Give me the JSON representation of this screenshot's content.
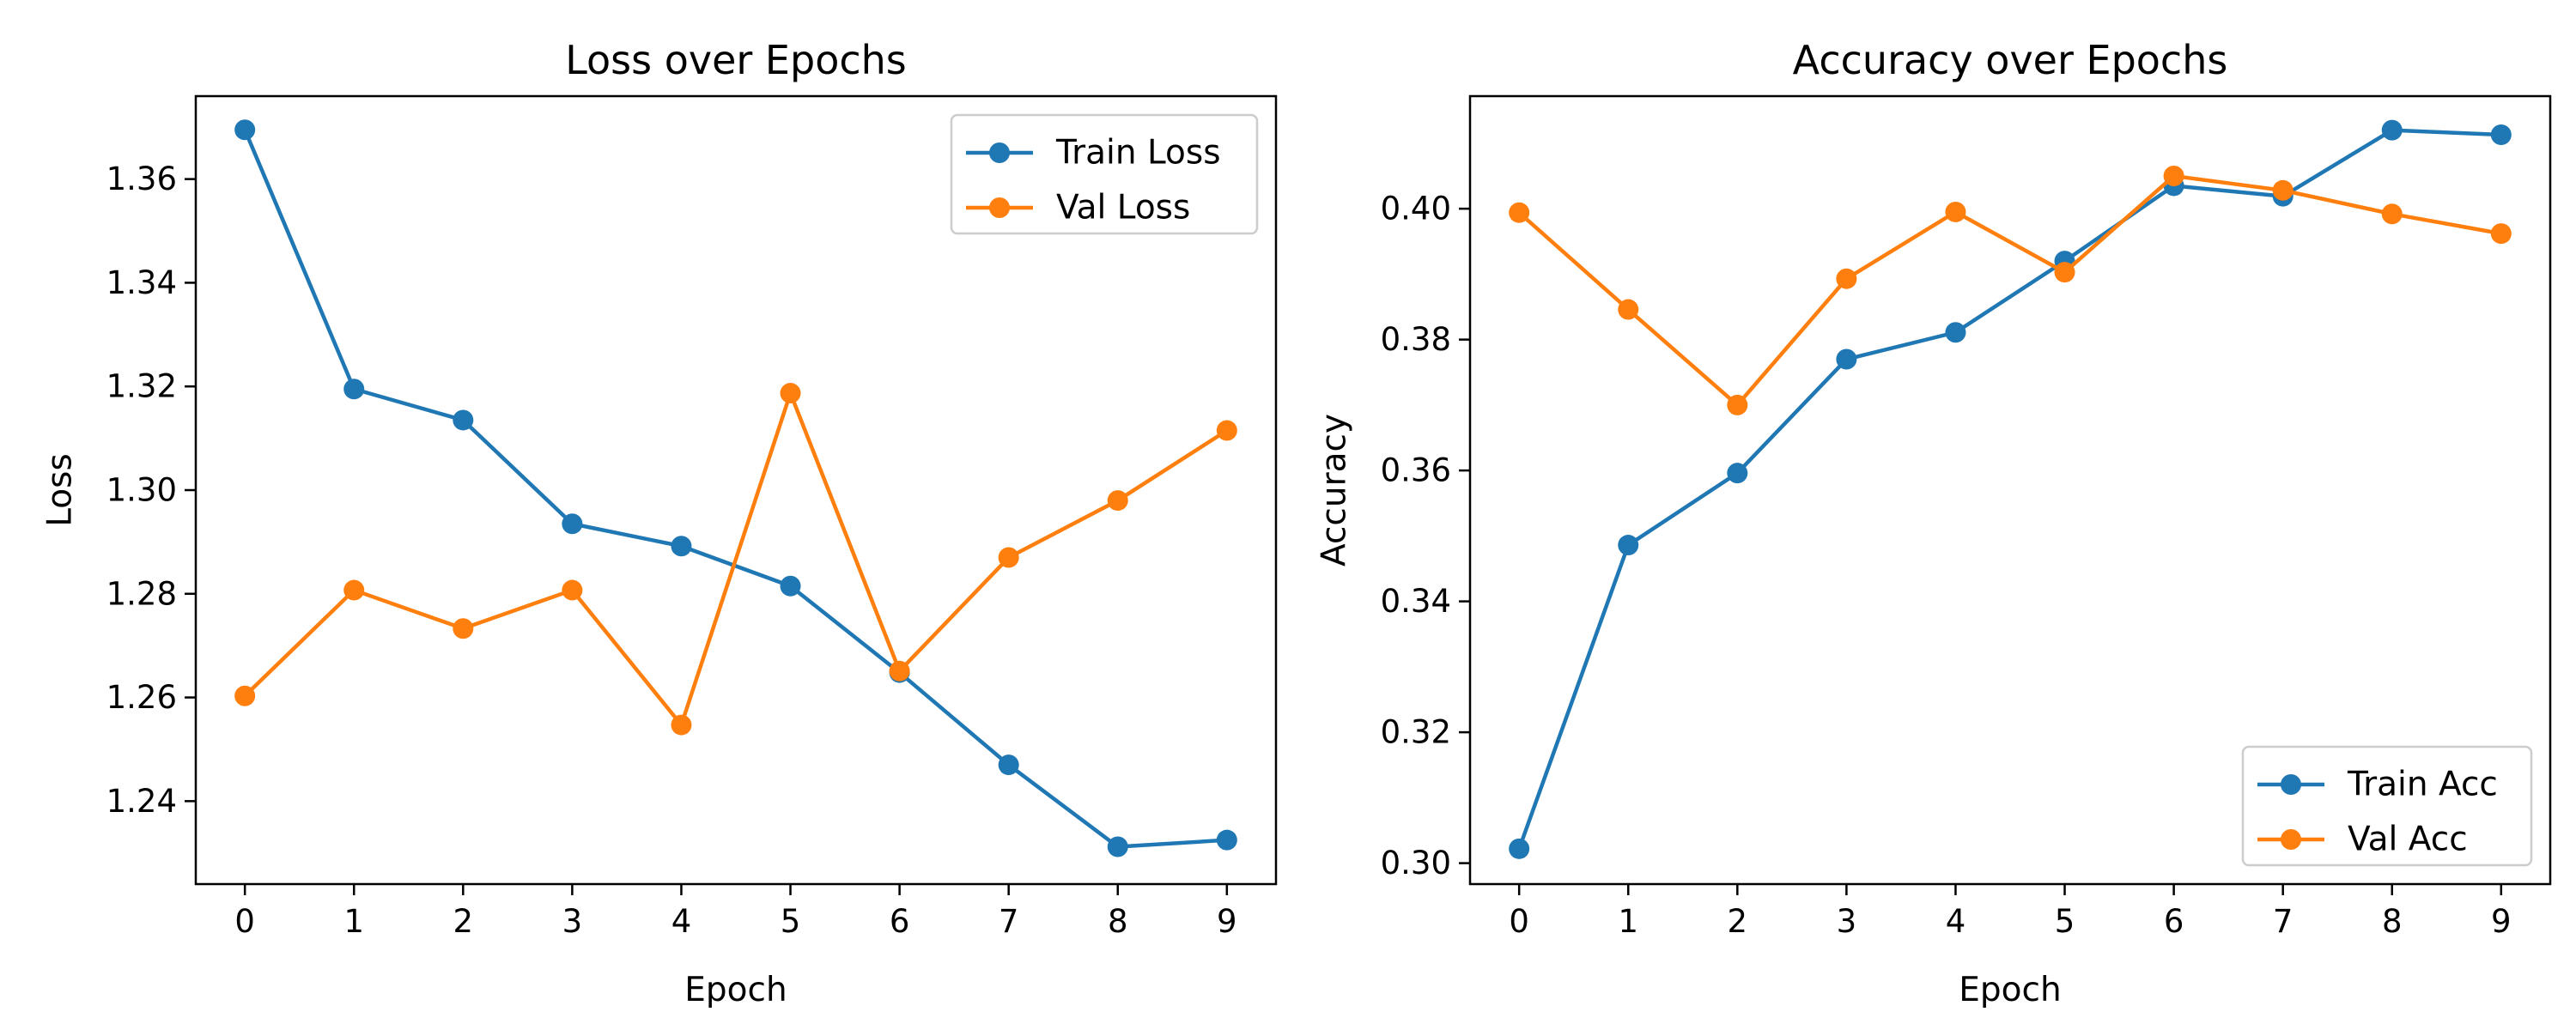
{
  "chart_data": [
    {
      "type": "line",
      "title": "Loss over Epochs",
      "xlabel": "Epoch",
      "ylabel": "Loss",
      "x": [
        0,
        1,
        2,
        3,
        4,
        5,
        6,
        7,
        8,
        9
      ],
      "xticks": [
        0,
        1,
        2,
        3,
        4,
        5,
        6,
        7,
        8,
        9
      ],
      "yticks": [
        1.24,
        1.26,
        1.28,
        1.3,
        1.32,
        1.34,
        1.36
      ],
      "ytick_labels": [
        "1.24",
        "1.26",
        "1.28",
        "1.30",
        "1.32",
        "1.34",
        "1.36"
      ],
      "xlim": [
        -0.45,
        9.45
      ],
      "ylim": [
        1.224,
        1.376
      ],
      "grid": false,
      "legend_position": "upper right",
      "series": [
        {
          "name": "Train Loss",
          "color": "#1f77b4",
          "marker": "circle",
          "values": [
            1.3695,
            1.3195,
            1.3135,
            1.2935,
            1.2892,
            1.2815,
            1.2648,
            1.247,
            1.2312,
            1.2325
          ]
        },
        {
          "name": "Val Loss",
          "color": "#ff7f0e",
          "marker": "circle",
          "values": [
            1.2603,
            1.2807,
            1.2733,
            1.2807,
            1.2547,
            1.3187,
            1.2651,
            1.287,
            1.298,
            1.3115
          ]
        }
      ]
    },
    {
      "type": "line",
      "title": "Accuracy over Epochs",
      "xlabel": "Epoch",
      "ylabel": "Accuracy",
      "x": [
        0,
        1,
        2,
        3,
        4,
        5,
        6,
        7,
        8,
        9
      ],
      "xticks": [
        0,
        1,
        2,
        3,
        4,
        5,
        6,
        7,
        8,
        9
      ],
      "yticks": [
        0.3,
        0.32,
        0.34,
        0.36,
        0.38,
        0.4
      ],
      "ytick_labels": [
        "0.30",
        "0.32",
        "0.34",
        "0.36",
        "0.38",
        "0.40"
      ],
      "xlim": [
        -0.45,
        9.45
      ],
      "ylim": [
        0.2968,
        0.4172
      ],
      "grid": false,
      "legend_position": "lower right",
      "series": [
        {
          "name": "Train Acc",
          "color": "#1f77b4",
          "marker": "circle",
          "values": [
            0.3022,
            0.3486,
            0.3596,
            0.377,
            0.3811,
            0.392,
            0.4035,
            0.4019,
            0.412,
            0.4113
          ]
        },
        {
          "name": "Val Acc",
          "color": "#ff7f0e",
          "marker": "circle",
          "values": [
            0.3994,
            0.3846,
            0.37,
            0.3893,
            0.3995,
            0.3903,
            0.405,
            0.4028,
            0.3992,
            0.3962
          ]
        }
      ]
    }
  ]
}
